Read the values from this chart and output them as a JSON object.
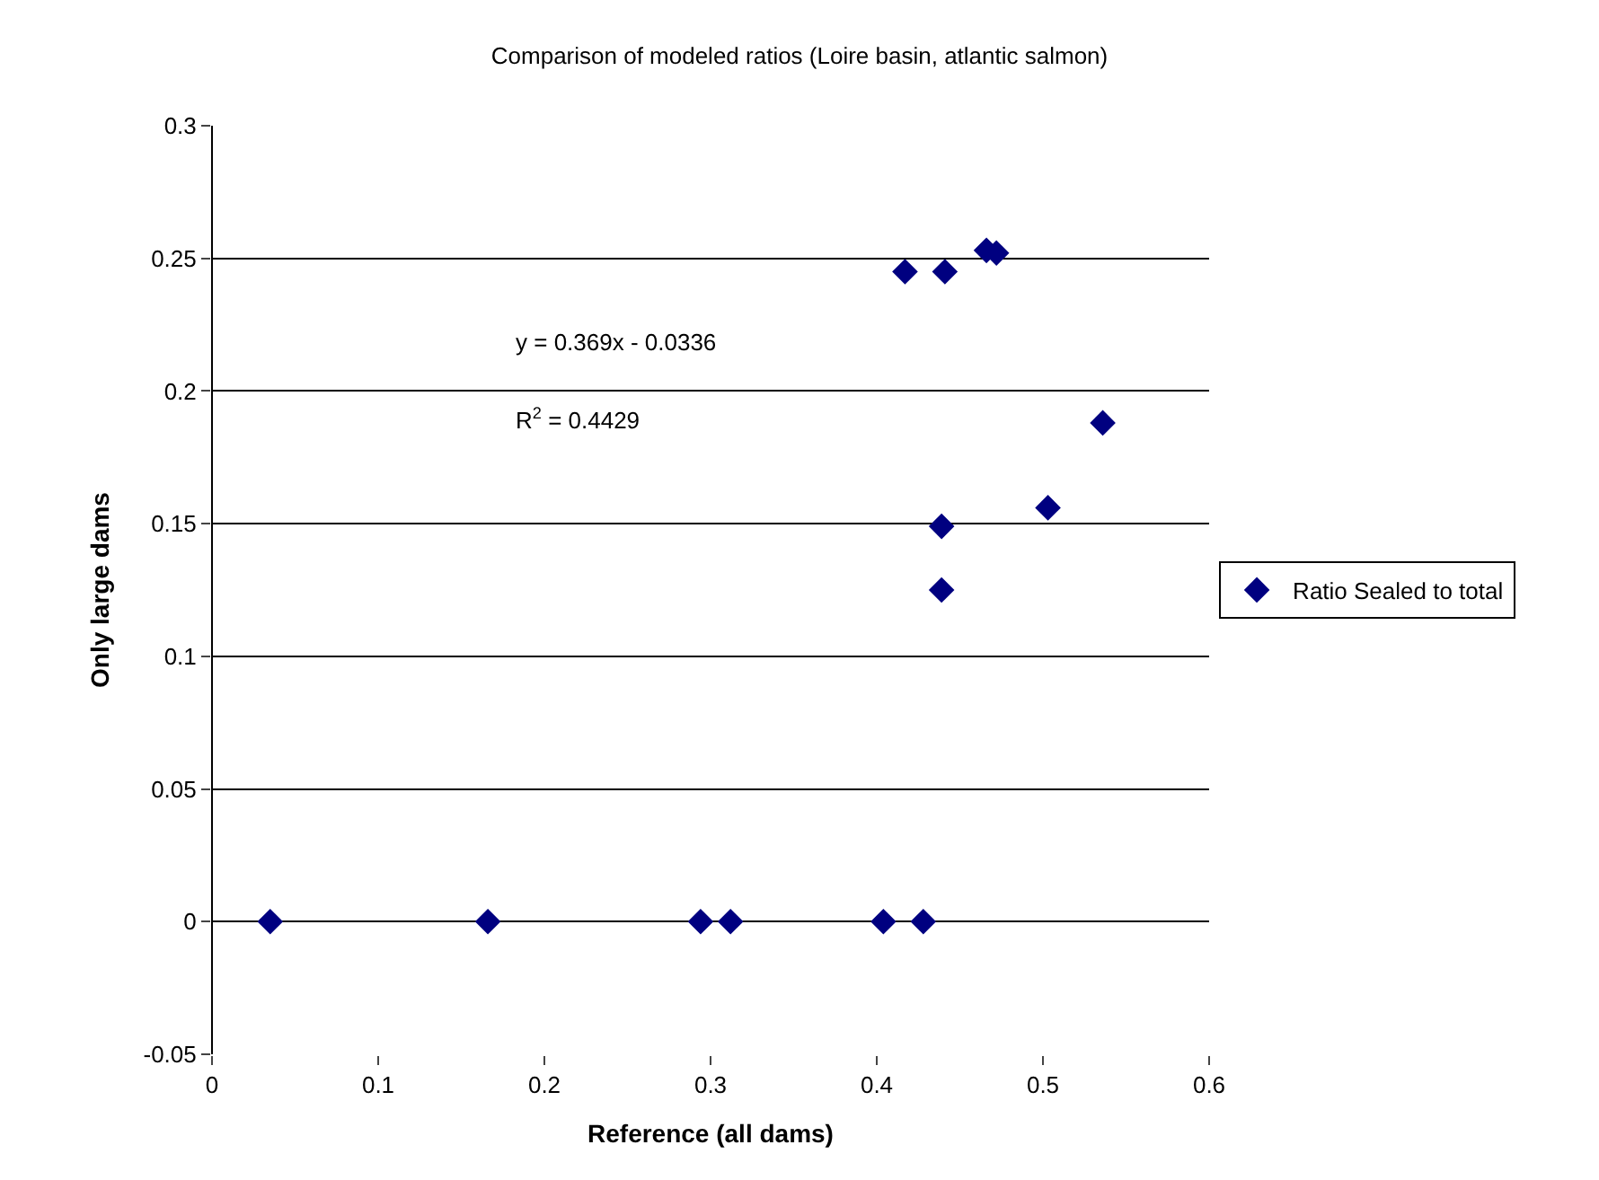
{
  "chart_data": {
    "type": "scatter",
    "title": "Comparison of modeled ratios (Loire basin, atlantic salmon)",
    "xlabel": "Reference (all dams)",
    "ylabel": "Only large dams",
    "x": [
      0.035,
      0.166,
      0.294,
      0.312,
      0.404,
      0.428,
      0.417,
      0.441,
      0.466,
      0.472,
      0.439,
      0.439,
      0.503,
      0.536
    ],
    "series": [
      {
        "name": "Ratio Sealed to total",
        "color": "#000080",
        "values": [
          0,
          0,
          0,
          0,
          0,
          0,
          0.245,
          0.245,
          0.253,
          0.252,
          0.149,
          0.125,
          0.156,
          0.188
        ]
      }
    ],
    "xlim": [
      0,
      0.6
    ],
    "xticks": [
      0,
      0.1,
      0.2,
      0.3,
      0.4,
      0.5,
      0.6
    ],
    "ylim": [
      -0.05,
      0.3
    ],
    "yticks": [
      -0.05,
      0,
      0.05,
      0.1,
      0.15,
      0.2,
      0.25,
      0.3
    ],
    "grid": "y",
    "legend": "right",
    "marker": "diamond",
    "annotations": [
      "y = 0.369x - 0.0336",
      "R$^{2}$ = 0.4429"
    ]
  }
}
